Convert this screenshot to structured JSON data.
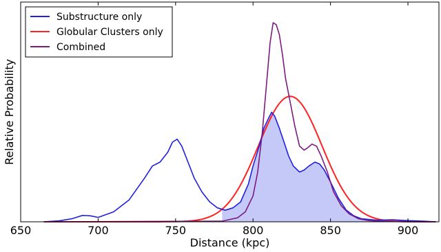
{
  "chart_data": {
    "type": "line",
    "title": "",
    "xlabel": "Distance (kpc)",
    "ylabel": "Relative Probability",
    "xlim": [
      650,
      920
    ],
    "ylim": [
      0,
      1.0
    ],
    "x_ticks": [
      "650",
      "700",
      "750",
      "800",
      "850",
      "900"
    ],
    "y_ticks_visible": false,
    "grid": false,
    "legend_position": "top-left",
    "series": [
      {
        "name": "Substructure only",
        "color": "#1f1fe0",
        "fill": "#c5c9f7",
        "fill_range": [
          780,
          920
        ],
        "x": [
          665,
          675,
          683,
          690,
          695,
          700,
          710,
          720,
          730,
          735,
          740,
          745,
          748,
          751,
          754,
          758,
          762,
          767,
          772,
          777,
          782,
          787,
          792,
          797,
          800,
          804,
          807,
          810,
          812,
          814,
          817,
          820,
          823,
          826,
          830,
          833,
          836,
          840,
          843,
          846,
          850,
          855,
          860,
          865,
          870,
          880,
          890,
          900,
          910,
          918
        ],
        "y": [
          0.0,
          0.005,
          0.015,
          0.032,
          0.03,
          0.022,
          0.05,
          0.11,
          0.22,
          0.28,
          0.3,
          0.35,
          0.4,
          0.415,
          0.38,
          0.3,
          0.22,
          0.15,
          0.1,
          0.07,
          0.058,
          0.07,
          0.1,
          0.19,
          0.28,
          0.38,
          0.47,
          0.52,
          0.55,
          0.53,
          0.47,
          0.4,
          0.33,
          0.28,
          0.25,
          0.26,
          0.28,
          0.3,
          0.29,
          0.26,
          0.2,
          0.12,
          0.06,
          0.03,
          0.015,
          0.008,
          0.01,
          0.006,
          0.003,
          0.0
        ]
      },
      {
        "name": "Globular Clusters only",
        "color": "#ff2020",
        "mu": 824,
        "sigma": 20.5,
        "peak": 0.63,
        "x_range": [
          665,
          918
        ]
      },
      {
        "name": "Combined",
        "color": "#7b1a80",
        "x": [
          665,
          780,
          790,
          795,
          800,
          803,
          806,
          809,
          811,
          813,
          815,
          817,
          819,
          821,
          824,
          827,
          830,
          833,
          835,
          838,
          841,
          844,
          848,
          852,
          857,
          862,
          868,
          875,
          885,
          900,
          918
        ],
        "y": [
          0.0,
          0.003,
          0.02,
          0.05,
          0.13,
          0.25,
          0.45,
          0.72,
          0.9,
          1.0,
          0.99,
          0.94,
          0.84,
          0.72,
          0.6,
          0.48,
          0.38,
          0.36,
          0.37,
          0.39,
          0.38,
          0.33,
          0.25,
          0.15,
          0.08,
          0.04,
          0.015,
          0.006,
          0.002,
          0.0,
          0.0
        ]
      }
    ]
  }
}
